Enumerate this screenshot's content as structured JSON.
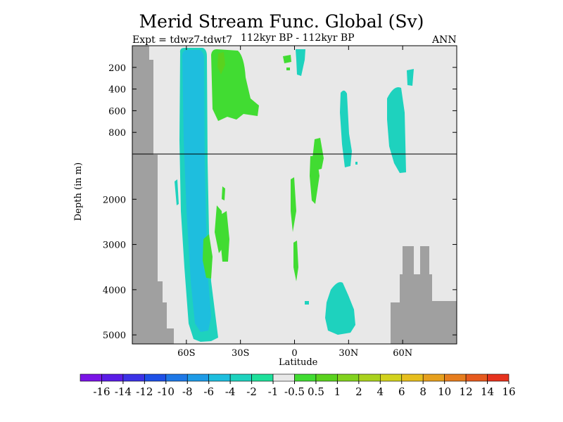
{
  "chart_data": {
    "type": "contour",
    "title": "Merid Stream Func. Global (Sv)",
    "experiment": "Expt = tdwz7-tdwt7",
    "period": "112kyr BP - 112kyr BP",
    "season": "ANN",
    "xlabel": "Latitude",
    "ylabel": "Depth (in m)",
    "xlim": [
      -90,
      90
    ],
    "ylim_upper": [
      0,
      1000
    ],
    "ylim_lower": [
      1000,
      5200
    ],
    "x_ticks": [
      {
        "value": -60,
        "label": "60S"
      },
      {
        "value": -30,
        "label": "30S"
      },
      {
        "value": 0,
        "label": "0"
      },
      {
        "value": 30,
        "label": "30N"
      },
      {
        "value": 60,
        "label": "60N"
      }
    ],
    "y_ticks_upper": [
      {
        "value": 200,
        "label": "200"
      },
      {
        "value": 400,
        "label": "400"
      },
      {
        "value": 600,
        "label": "600"
      },
      {
        "value": 800,
        "label": "800"
      }
    ],
    "y_ticks_lower": [
      {
        "value": 2000,
        "label": "2000"
      },
      {
        "value": 3000,
        "label": "3000"
      },
      {
        "value": 4000,
        "label": "4000"
      },
      {
        "value": 5000,
        "label": "5000"
      }
    ],
    "colorbar": {
      "labels": [
        "-16",
        "-14",
        "-12",
        "-10",
        "-8",
        "-6",
        "-4",
        "-2",
        "-1",
        "-0.5",
        "0.5",
        "1",
        "2",
        "4",
        "6",
        "8",
        "10",
        "12",
        "14",
        "16"
      ],
      "colors": [
        "#7a14e6",
        "#5a1ce6",
        "#3c32e6",
        "#1e50e6",
        "#1e78e6",
        "#1e9be6",
        "#1ebede",
        "#1ed2be",
        "#1ee09b",
        "#e8e8e8",
        "#41dc32",
        "#5ad21e",
        "#82d21e",
        "#aad21e",
        "#d2d21e",
        "#e6be1e",
        "#e6a01e",
        "#e67d1e",
        "#e65a1e",
        "#e6321e"
      ]
    },
    "colors": {
      "background": "#e8e8e8",
      "land": "#a0a0a0",
      "negative_weak": "#1ed2be",
      "negative_mid": "#1ebede",
      "positive_weak": "#41dc32",
      "positive_mid": "#5ad21e"
    }
  }
}
